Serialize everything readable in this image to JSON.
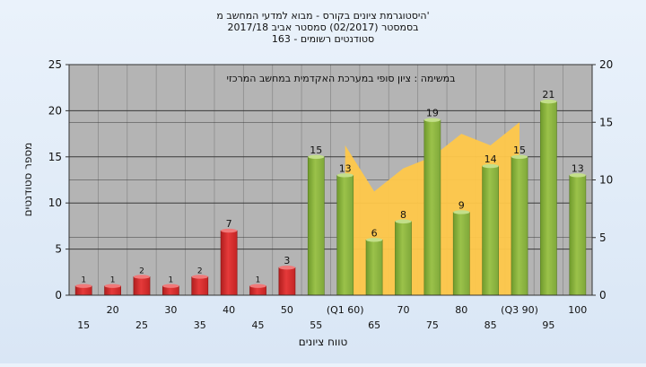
{
  "chart_data": {
    "type": "bar",
    "title_lines": [
      "היסטוגרמת ציונים בקורס - מבוא למדעי המחשב מ'",
      "בסמסטר  (02/2017)  סמסטר אביב 2017/18",
      "163 - סטודנטים רשומים"
    ],
    "legend_text": "במשימה : ציון סופי במערכת האקדמית במחשב המרכזי",
    "xlabel": "טווח ציונים",
    "ylabel": "מספר סטודנטים",
    "ylim": [
      0,
      25
    ],
    "yticks": [
      "0",
      "5",
      "10",
      "15",
      "20",
      "25"
    ],
    "y2lim": [
      0,
      20
    ],
    "y2ticks": [
      "0",
      "5",
      "10",
      "15",
      "20"
    ],
    "categories": [
      "15",
      "20",
      "25",
      "30",
      "35",
      "40",
      "45",
      "50",
      "55",
      "(Q1 60)",
      "65",
      "70",
      "75",
      "80",
      "85",
      "(Q3 90)",
      "95",
      "100"
    ],
    "values": [
      1,
      1,
      2,
      1,
      2,
      7,
      1,
      3,
      15,
      13,
      6,
      8,
      19,
      9,
      14,
      15,
      21,
      13
    ],
    "value_labels": [
      "1",
      "1",
      "2",
      "1",
      "2",
      "7",
      "1",
      "3",
      "15",
      "13",
      "6",
      "8",
      "19",
      "9",
      "14",
      "15",
      "21",
      "13"
    ],
    "pass_threshold_index": 8,
    "area_series": {
      "x_categories": [
        "(Q1 60)",
        "65",
        "70",
        "75",
        "80",
        "85",
        "(Q3 90)"
      ],
      "values": [
        13,
        9,
        11,
        12,
        14,
        13,
        15
      ]
    },
    "grid": true,
    "colors": {
      "fail_bar": "#e53a3a",
      "pass_bar": "#9bc24a",
      "area": "#ffc84a",
      "plot_bg": "#b4b4b4",
      "grid": "#3a3a3a"
    }
  }
}
